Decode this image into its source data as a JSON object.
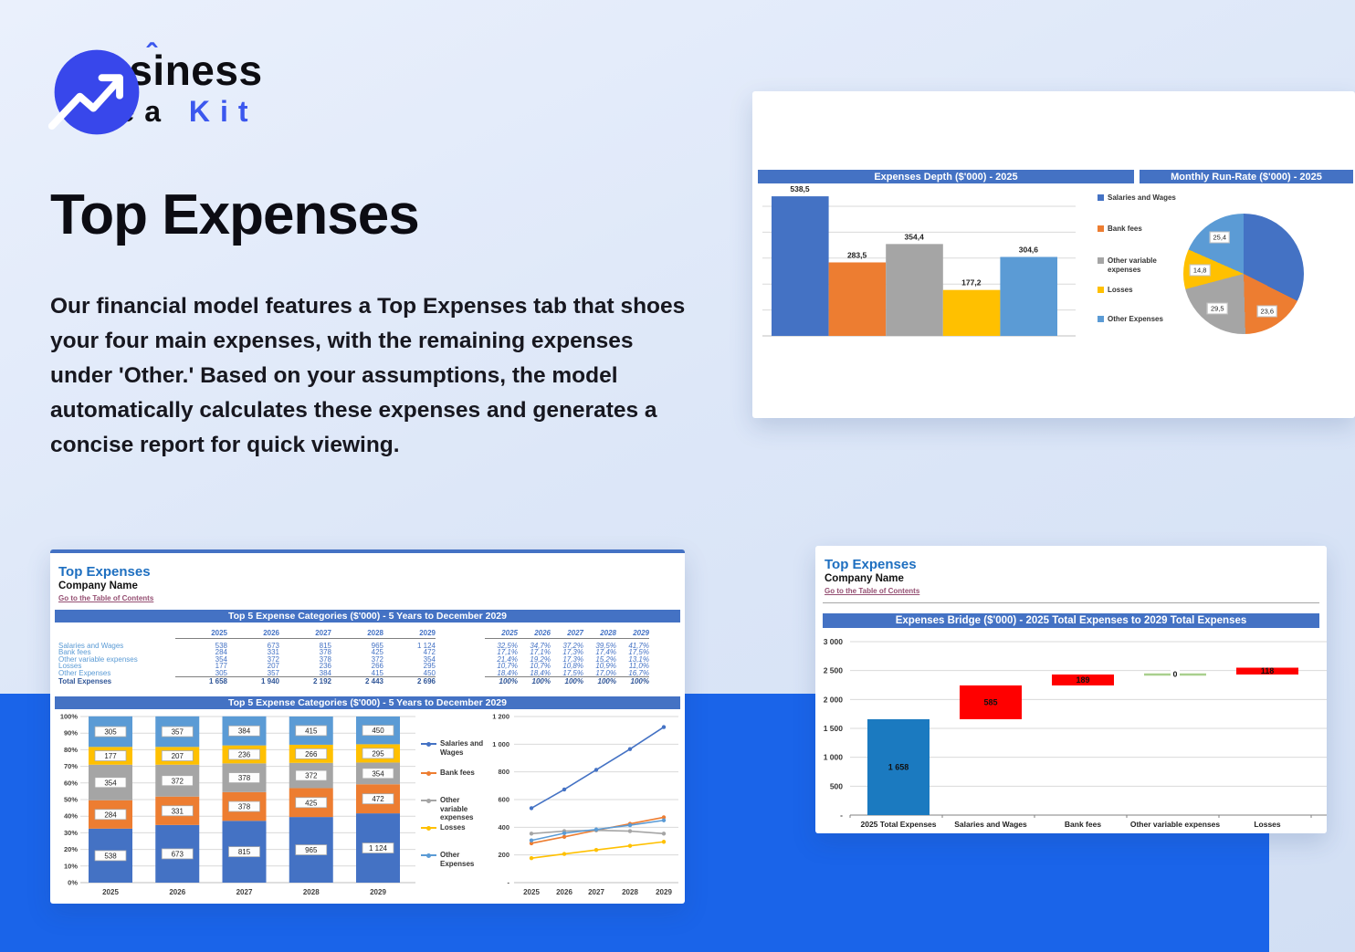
{
  "colors": {
    "accent": "#3b57ee",
    "logo_circle": "#3847eb",
    "band": "#1a64e9",
    "excel_header": "#4472c4",
    "series": [
      "#4472c4",
      "#ed7d31",
      "#a5a5a5",
      "#ffc000",
      "#5b9bd5"
    ],
    "waterfall_total": "#1b7ac0",
    "waterfall_increase": "#ff0000",
    "waterfall_zero": "#a9d08e",
    "link": "#954f72"
  },
  "brand": {
    "pre": "Bus",
    "i": "i",
    "caret": "ˆ",
    "post": "ness",
    "line2_black": "Idea",
    "line2_accent": "Kit"
  },
  "hero": {
    "title": "Top Expenses",
    "description": "Our financial model features a Top Expenses tab that shoes your four main expenses, with the remaining expenses under 'Other.' Based on your assumptions, the model automatically calculates these expenses and generates a concise report for quick viewing."
  },
  "series_names": [
    "Salaries and Wages",
    "Bank fees",
    "Other variable expenses",
    "Losses",
    "Other Expenses"
  ],
  "years": [
    "2025",
    "2026",
    "2027",
    "2028",
    "2029"
  ],
  "depth_panel": {
    "title": "Expenses Depth ($'000) - 2025",
    "chart_data": {
      "type": "bar",
      "categories": [
        "Salaries and Wages",
        "Bank fees",
        "Other variable expenses",
        "Losses",
        "Other Expenses"
      ],
      "values": [
        538.5,
        283.5,
        354.4,
        177.2,
        304.6
      ],
      "labels": [
        "538,5",
        "283,5",
        "354,4",
        "177,2",
        "304,6"
      ],
      "ylim": [
        0,
        500
      ],
      "grid_step": 100,
      "grid": true,
      "legend_position": "right"
    }
  },
  "runrate_panel": {
    "title": "Monthly Run-Rate ($'000) - 2025",
    "chart_data": {
      "type": "pie",
      "slices": [
        {
          "name": "Salaries and Wages",
          "value": 44.8,
          "label": ""
        },
        {
          "name": "Bank fees",
          "value": 23.6,
          "label": "23,6"
        },
        {
          "name": "Other variable expenses",
          "value": 29.5,
          "label": "29,5"
        },
        {
          "name": "Losses",
          "value": 14.8,
          "label": "14,8"
        },
        {
          "name": "Other Expenses",
          "value": 25.4,
          "label": "25,4"
        }
      ]
    }
  },
  "sheet_top5": {
    "heading": "Top Expenses",
    "company": "Company Name",
    "link": "Go to the Table of Contents",
    "section_title": "Top 5 Expense Categories ($'000) - 5 Years to December 2029",
    "chart_title": "Top 5 Expense Categories ($'000) - 5 Years to December 2029",
    "table": {
      "rows": [
        {
          "label": "Salaries and Wages",
          "values": [
            "538",
            "673",
            "815",
            "965",
            "1 124"
          ],
          "pcts": [
            "32,5%",
            "34,7%",
            "37,2%",
            "39,5%",
            "41,7%"
          ]
        },
        {
          "label": "Bank fees",
          "values": [
            "284",
            "331",
            "378",
            "425",
            "472"
          ],
          "pcts": [
            "17,1%",
            "17,1%",
            "17,3%",
            "17,4%",
            "17,5%"
          ]
        },
        {
          "label": "Other variable expenses",
          "values": [
            "354",
            "372",
            "378",
            "372",
            "354"
          ],
          "pcts": [
            "21,4%",
            "19,2%",
            "17,3%",
            "15,2%",
            "13,1%"
          ]
        },
        {
          "label": "Losses",
          "values": [
            "177",
            "207",
            "236",
            "266",
            "295"
          ],
          "pcts": [
            "10,7%",
            "10,7%",
            "10,8%",
            "10,9%",
            "11,0%"
          ]
        },
        {
          "label": "Other Expenses",
          "values": [
            "305",
            "357",
            "384",
            "415",
            "450"
          ],
          "pcts": [
            "18,4%",
            "18,4%",
            "17,5%",
            "17,0%",
            "16,7%"
          ]
        }
      ],
      "total": {
        "label": "Total Expenses",
        "values": [
          "1 658",
          "1 940",
          "2 192",
          "2 443",
          "2 696"
        ],
        "pcts": [
          "100%",
          "100%",
          "100%",
          "100%",
          "100%"
        ]
      }
    },
    "stacked_chart": {
      "type": "bar",
      "stacked_pct": true,
      "categories": [
        "2025",
        "2026",
        "2027",
        "2028",
        "2029"
      ],
      "yticks": [
        "0%",
        "10%",
        "20%",
        "30%",
        "40%",
        "50%",
        "60%",
        "70%",
        "80%",
        "90%",
        "100%"
      ],
      "series": [
        {
          "name": "Salaries and Wages",
          "labels": [
            "538",
            "673",
            "815",
            "965",
            "1 124"
          ],
          "pcts": [
            32.5,
            34.7,
            37.2,
            39.5,
            41.7
          ]
        },
        {
          "name": "Bank fees",
          "labels": [
            "284",
            "331",
            "378",
            "425",
            "472"
          ],
          "pcts": [
            17.1,
            17.1,
            17.3,
            17.4,
            17.5
          ]
        },
        {
          "name": "Other variable expenses",
          "labels": [
            "354",
            "372",
            "378",
            "372",
            "354"
          ],
          "pcts": [
            21.4,
            19.2,
            17.3,
            15.2,
            13.1
          ]
        },
        {
          "name": "Losses",
          "labels": [
            "177",
            "207",
            "236",
            "266",
            "295"
          ],
          "pcts": [
            10.7,
            10.7,
            10.8,
            10.9,
            11.0
          ]
        },
        {
          "name": "Other Expenses",
          "labels": [
            "305",
            "357",
            "384",
            "415",
            "450"
          ],
          "pcts": [
            18.4,
            18.4,
            17.5,
            17.0,
            16.7
          ]
        }
      ]
    },
    "line_chart": {
      "type": "line",
      "x": [
        "2025",
        "2026",
        "2027",
        "2028",
        "2029"
      ],
      "ylim": [
        0,
        1200
      ],
      "yticks": [
        {
          "v": 1200,
          "t": "1 200"
        },
        {
          "v": 1000,
          "t": "1 000"
        },
        {
          "v": 800,
          "t": "800"
        },
        {
          "v": 600,
          "t": "600"
        },
        {
          "v": 400,
          "t": "400"
        },
        {
          "v": 200,
          "t": "200"
        },
        {
          "v": 0,
          "t": "-"
        }
      ],
      "series": [
        {
          "name": "Salaries and Wages",
          "values": [
            538,
            673,
            815,
            965,
            1124
          ]
        },
        {
          "name": "Bank fees",
          "values": [
            284,
            331,
            378,
            425,
            472
          ]
        },
        {
          "name": "Other variable expenses",
          "values": [
            354,
            372,
            378,
            372,
            354
          ]
        },
        {
          "name": "Losses",
          "values": [
            177,
            207,
            236,
            266,
            295
          ]
        },
        {
          "name": "Other Expenses",
          "values": [
            305,
            357,
            384,
            415,
            450
          ]
        }
      ]
    }
  },
  "sheet_bridge": {
    "heading": "Top Expenses",
    "company": "Company Name",
    "link": "Go to the Table of Contents",
    "section_title": "Expenses Bridge ($'000) - 2025 Total Expenses to 2029 Total Expenses",
    "chart_data": {
      "type": "waterfall",
      "categories": [
        "2025 Total Expenses",
        "Salaries and Wages",
        "Bank fees",
        "Other variable expenses",
        "Losses"
      ],
      "bars": [
        {
          "label": "1 658",
          "start": 0,
          "end": 1658,
          "kind": "total"
        },
        {
          "label": "585",
          "start": 1658,
          "end": 2243,
          "kind": "increase"
        },
        {
          "label": "189",
          "start": 2243,
          "end": 2432,
          "kind": "increase"
        },
        {
          "label": "0",
          "start": 2432,
          "end": 2432,
          "kind": "zero"
        },
        {
          "label": "118",
          "start": 2432,
          "end": 2550,
          "kind": "increase"
        }
      ],
      "ylim": [
        0,
        3000
      ],
      "yticks": [
        {
          "v": 3000,
          "t": "3 000"
        },
        {
          "v": 2500,
          "t": "2 500"
        },
        {
          "v": 2000,
          "t": "2 000"
        },
        {
          "v": 1500,
          "t": "1 500"
        },
        {
          "v": 1000,
          "t": "1 000"
        },
        {
          "v": 500,
          "t": "500"
        },
        {
          "v": 0,
          "t": "-"
        }
      ]
    }
  }
}
